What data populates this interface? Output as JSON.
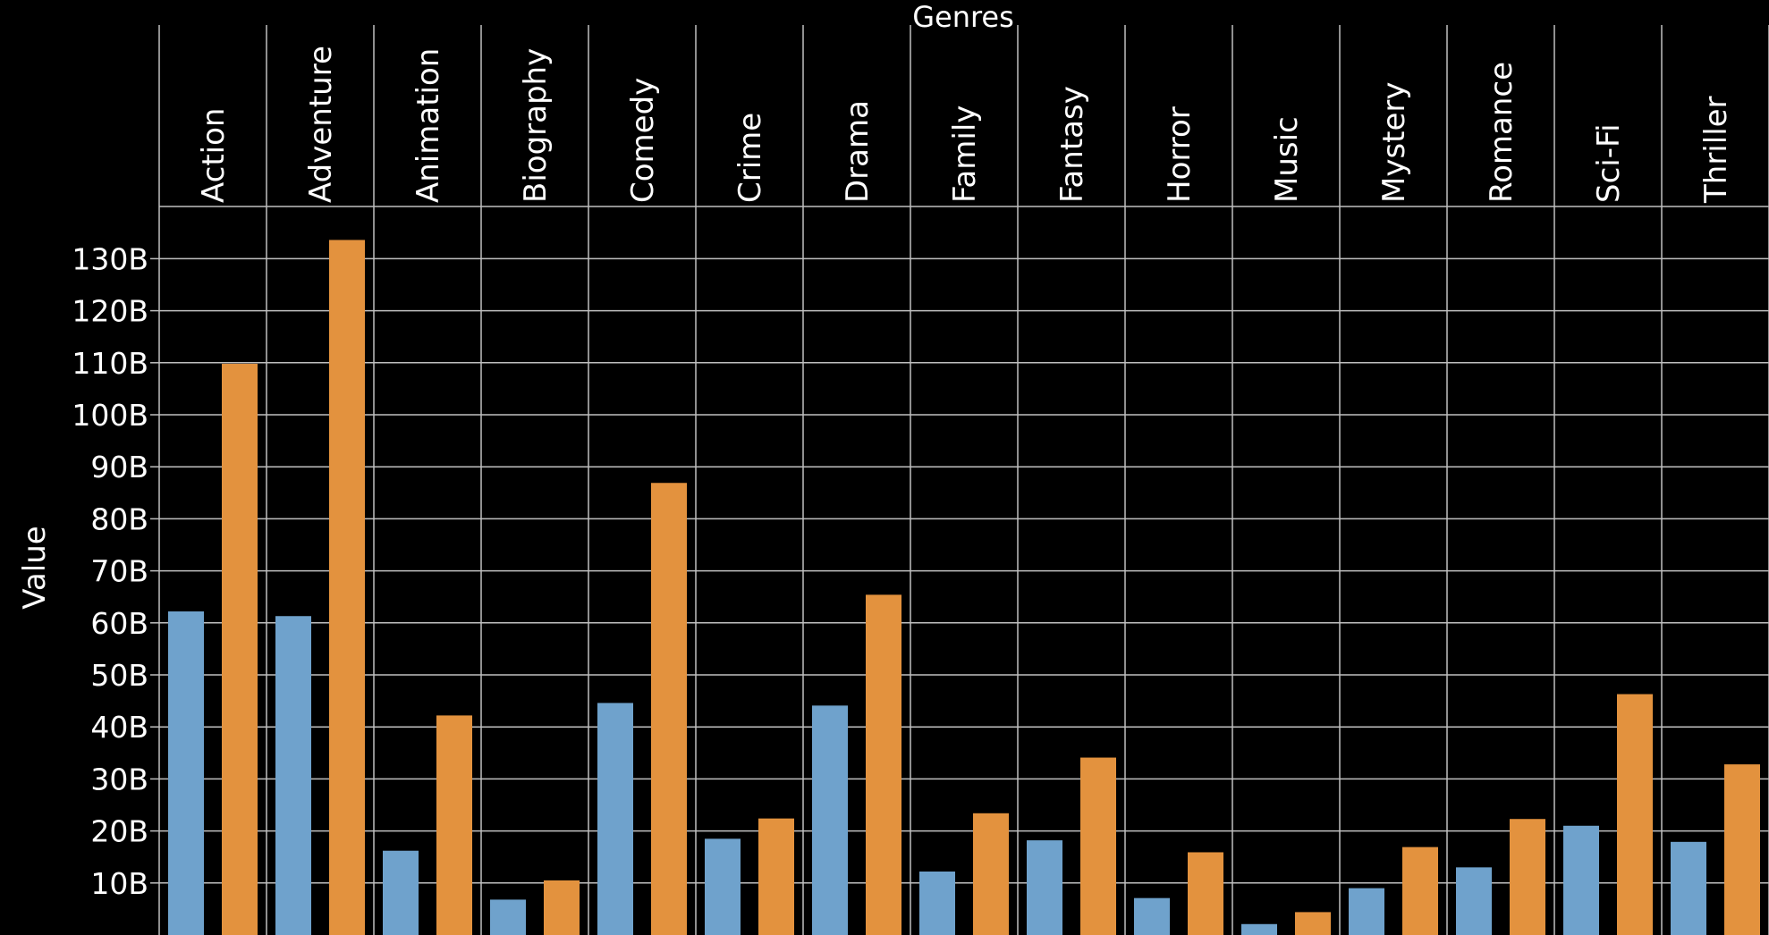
{
  "chart_data": {
    "type": "bar",
    "title": "Genres",
    "xlabel": "",
    "ylabel": "Value",
    "categories": [
      "Action",
      "Adventure",
      "Animation",
      "Biography",
      "Comedy",
      "Crime",
      "Drama",
      "Family",
      "Fantasy",
      "Horror",
      "Music",
      "Mystery",
      "Romance",
      "Sci-Fi",
      "Thriller"
    ],
    "series": [
      {
        "color": "#6fa2cc",
        "values": [
          62.2,
          61.3,
          16.2,
          6.8,
          44.6,
          18.5,
          44.1,
          12.2,
          18.2,
          7.1,
          2.1,
          9.0,
          13.0,
          21.0,
          17.9
        ]
      },
      {
        "color": "#e3923e",
        "values": [
          109.8,
          133.6,
          42.2,
          10.5,
          86.9,
          22.4,
          65.4,
          23.4,
          34.1,
          15.9,
          4.4,
          16.9,
          22.3,
          46.3,
          32.8
        ]
      }
    ],
    "yticks": [
      "10B",
      "20B",
      "30B",
      "40B",
      "50B",
      "60B",
      "70B",
      "80B",
      "90B",
      "100B",
      "110B",
      "120B",
      "130B"
    ],
    "ylim": [
      0,
      140
    ],
    "grid": true,
    "background": "#000000",
    "grid_color": "#bfbfbf"
  }
}
